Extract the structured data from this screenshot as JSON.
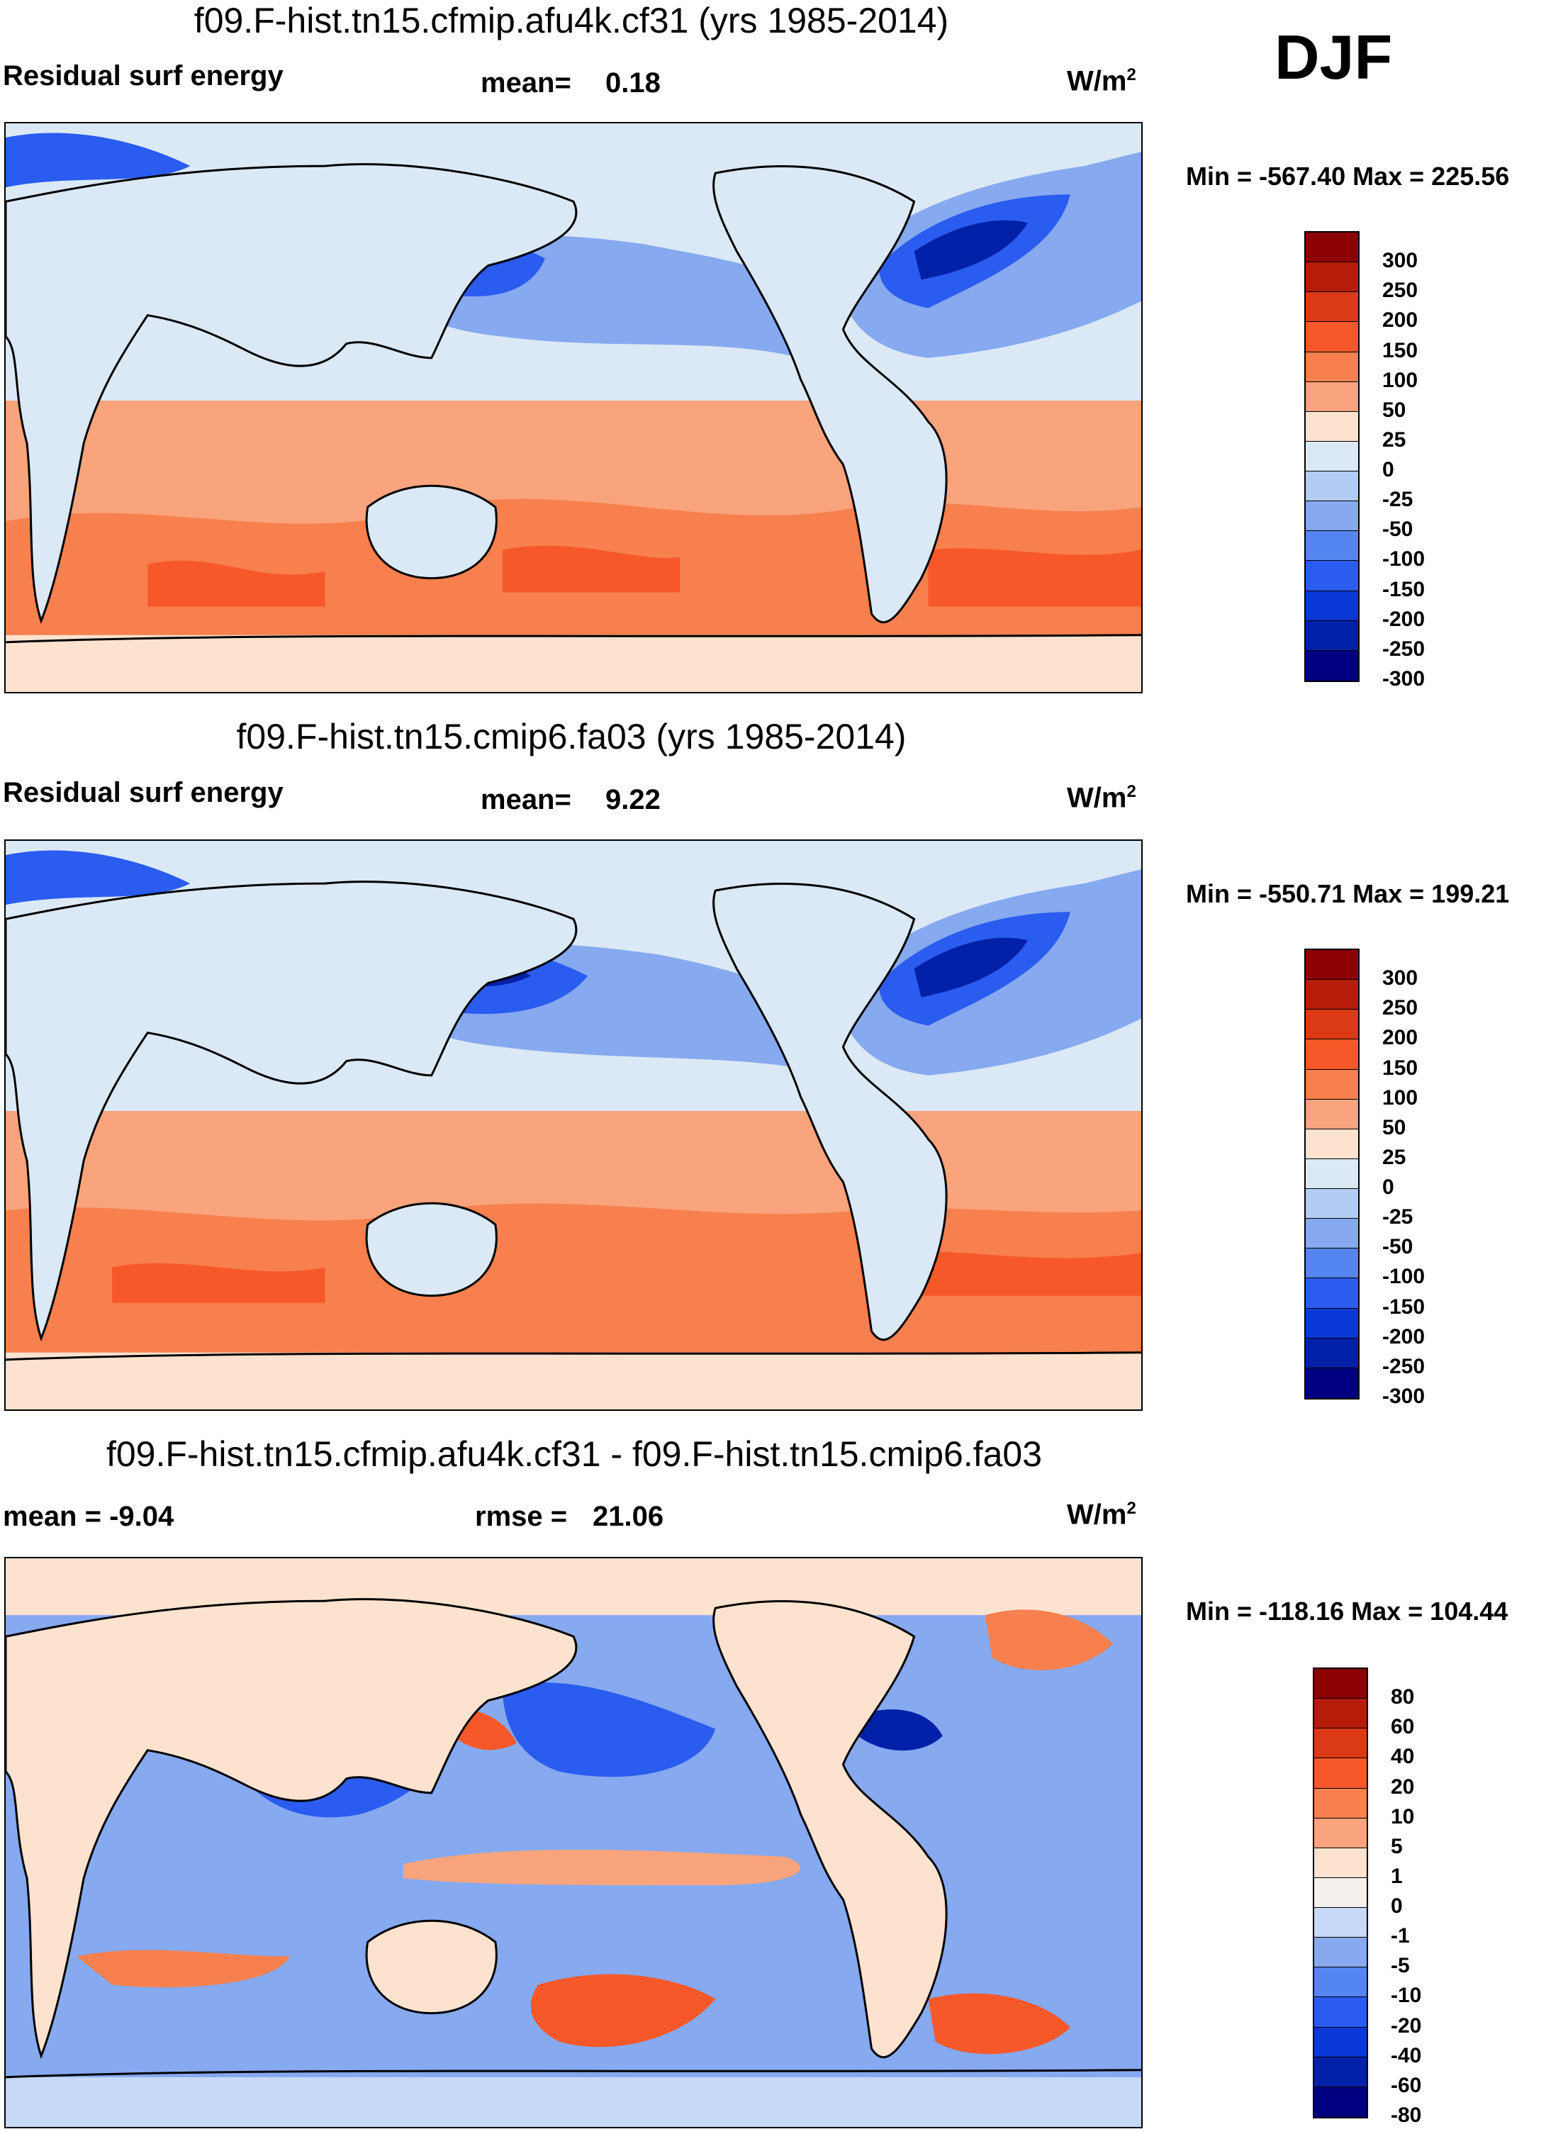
{
  "season": "DJF",
  "panels": [
    {
      "id": "afu4k",
      "title": "f09.F-hist.tn15.cfmip.afu4k.cf31 (yrs 1985-2014)",
      "left_label": "Residual surf energy",
      "center_label": "mean=",
      "center_value": "0.18",
      "units": "W/m",
      "units_sup": "2",
      "minmax": "Min = -567.40 Max = 225.56",
      "colorbar": {
        "colors": [
          "#8b0000",
          "#b51c0a",
          "#dc3a16",
          "#f7582a",
          "#f7804e",
          "#f9a47c",
          "#fde3cf",
          "#dbe9f6",
          "#b3ccf4",
          "#86a9f0",
          "#5585f0",
          "#2b5cf0",
          "#0a38d6",
          "#0020a8",
          "#000080"
        ],
        "labels": [
          "300",
          "250",
          "200",
          "150",
          "100",
          "50",
          "25",
          "0",
          "-25",
          "-50",
          "-100",
          "-150",
          "-200",
          "-250",
          "-300"
        ]
      },
      "map_colors": {
        "warm1": "#fde3cf",
        "warm2": "#f9a47c",
        "warm3": "#f7804e",
        "warm4": "#f7582a",
        "cool1": "#dbe9f6",
        "cool2": "#86a9f0",
        "cool3": "#2b5cf0",
        "cool4": "#0020a8",
        "land": "#dbe9f6"
      }
    },
    {
      "id": "cmip6",
      "title": "f09.F-hist.tn15.cmip6.fa03 (yrs 1985-2014)",
      "left_label": "Residual surf energy",
      "center_label": "mean=",
      "center_value": "9.22",
      "units": "W/m",
      "units_sup": "2",
      "minmax": "Min = -550.71 Max = 199.21",
      "colorbar": {
        "colors": [
          "#8b0000",
          "#b51c0a",
          "#dc3a16",
          "#f7582a",
          "#f7804e",
          "#f9a47c",
          "#fde3cf",
          "#dbe9f6",
          "#b3ccf4",
          "#86a9f0",
          "#5585f0",
          "#2b5cf0",
          "#0a38d6",
          "#0020a8",
          "#000080"
        ],
        "labels": [
          "300",
          "250",
          "200",
          "150",
          "100",
          "50",
          "25",
          "0",
          "-25",
          "-50",
          "-100",
          "-150",
          "-200",
          "-250",
          "-300"
        ]
      },
      "map_colors": {
        "warm1": "#fde3cf",
        "warm2": "#f9a47c",
        "warm3": "#f7804e",
        "warm4": "#f7582a",
        "cool1": "#dbe9f6",
        "cool2": "#86a9f0",
        "cool3": "#2b5cf0",
        "cool4": "#0020a8",
        "land": "#dbe9f6"
      }
    },
    {
      "id": "diff",
      "title": "f09.F-hist.tn15.cfmip.afu4k.cf31 - f09.F-hist.tn15.cmip6.fa03",
      "left_label": "mean =  -9.04",
      "center_label": "rmse =",
      "center_value": "21.06",
      "units": "W/m",
      "units_sup": "2",
      "minmax": "Min = -118.16 Max = 104.44",
      "colorbar": {
        "colors": [
          "#8b0000",
          "#b51c0a",
          "#dc3a16",
          "#f7582a",
          "#f7804e",
          "#f9a47c",
          "#fde3cf",
          "#f5f0ec",
          "#c6d9f6",
          "#86a9f0",
          "#5585f0",
          "#2b5cf0",
          "#0a38d6",
          "#0020a8",
          "#000080"
        ],
        "labels": [
          "80",
          "60",
          "40",
          "20",
          "10",
          "5",
          "1",
          "0",
          "-1",
          "-5",
          "-10",
          "-20",
          "-40",
          "-60",
          "-80"
        ]
      },
      "map_colors": {
        "warm1": "#fde3cf",
        "warm2": "#f9a47c",
        "warm3": "#f7804e",
        "warm4": "#f7582a",
        "cool1": "#c6d9f6",
        "cool2": "#86a9f0",
        "cool3": "#2b5cf0",
        "cool4": "#0020a8",
        "land": "#fde3cf"
      }
    }
  ]
}
